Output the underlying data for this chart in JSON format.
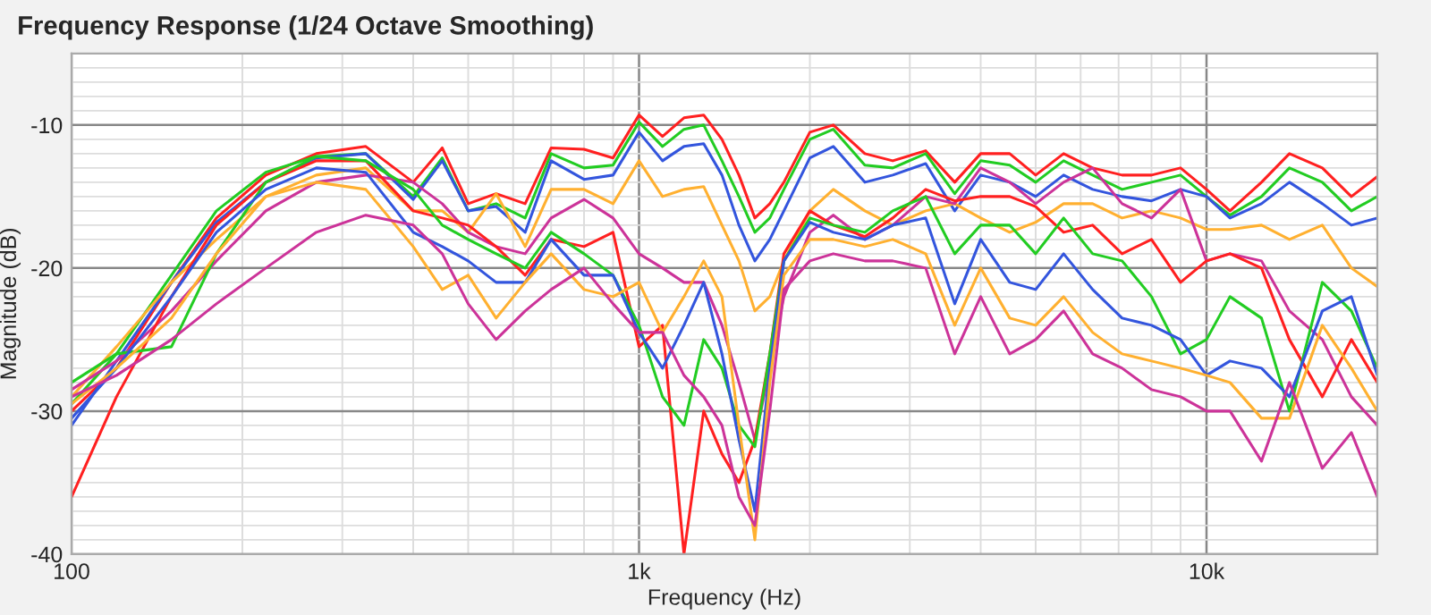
{
  "chart_data": {
    "type": "line",
    "title": "Frequency Response (1/24 Octave Smoothing)",
    "xlabel": "Frequency (Hz)",
    "ylabel": "Magnitude (dB)",
    "log": "x",
    "grid": true,
    "legend": false,
    "xlim": [
      100,
      20000
    ],
    "ylim": [
      -40,
      -5
    ],
    "xticks": [
      {
        "value": 100,
        "label": "100"
      },
      {
        "value": 200,
        "label": null
      },
      {
        "value": 300,
        "label": null
      },
      {
        "value": 400,
        "label": null
      },
      {
        "value": 500,
        "label": null
      },
      {
        "value": 600,
        "label": null
      },
      {
        "value": 700,
        "label": null
      },
      {
        "value": 800,
        "label": null
      },
      {
        "value": 900,
        "label": null
      },
      {
        "value": 1000,
        "label": "1k"
      },
      {
        "value": 2000,
        "label": null
      },
      {
        "value": 3000,
        "label": null
      },
      {
        "value": 4000,
        "label": null
      },
      {
        "value": 5000,
        "label": null
      },
      {
        "value": 6000,
        "label": null
      },
      {
        "value": 7000,
        "label": null
      },
      {
        "value": 8000,
        "label": null
      },
      {
        "value": 9000,
        "label": null
      },
      {
        "value": 10000,
        "label": "10k"
      },
      {
        "value": 20000,
        "label": null
      }
    ],
    "yticks": [
      -40,
      {
        "value": -39,
        "label": null
      },
      {
        "value": -38,
        "label": null
      },
      {
        "value": -37,
        "label": null
      },
      {
        "value": -36,
        "label": null
      },
      {
        "value": -35,
        "label": null
      },
      {
        "value": -34,
        "label": null
      },
      {
        "value": -33,
        "label": null
      },
      {
        "value": -32,
        "label": null
      },
      {
        "value": -31,
        "label": null
      },
      -30,
      {
        "value": -29,
        "label": null
      },
      {
        "value": -28,
        "label": null
      },
      {
        "value": -27,
        "label": null
      },
      {
        "value": -26,
        "label": null
      },
      {
        "value": -25,
        "label": null
      },
      {
        "value": -24,
        "label": null
      },
      {
        "value": -23,
        "label": null
      },
      {
        "value": -22,
        "label": null
      },
      {
        "value": -21,
        "label": null
      },
      -20,
      {
        "value": -19,
        "label": null
      },
      {
        "value": -18,
        "label": null
      },
      {
        "value": -17,
        "label": null
      },
      {
        "value": -16,
        "label": null
      },
      {
        "value": -15,
        "label": null
      },
      {
        "value": -14,
        "label": null
      },
      {
        "value": -13,
        "label": null
      },
      {
        "value": -12,
        "label": null
      },
      {
        "value": -11,
        "label": null
      },
      -10,
      {
        "value": -9,
        "label": null
      },
      {
        "value": -8,
        "label": null
      },
      {
        "value": -7,
        "label": null
      },
      {
        "value": -6,
        "label": null
      },
      {
        "value": -5,
        "label": null
      }
    ],
    "x": [
      100,
      120,
      150,
      180,
      220,
      270,
      330,
      400,
      450,
      500,
      560,
      630,
      700,
      800,
      900,
      1000,
      1100,
      1200,
      1300,
      1400,
      1500,
      1600,
      1700,
      1800,
      2000,
      2200,
      2500,
      2800,
      3200,
      3600,
      4000,
      4500,
      5000,
      5600,
      6300,
      7100,
      8000,
      9000,
      10000,
      11000,
      12500,
      14000,
      16000,
      18000,
      20000
    ],
    "series": [
      {
        "color": "#ff2020",
        "values": [
          -30,
          -27,
          -21,
          -16.5,
          -13.5,
          -12,
          -11.5,
          -14,
          -11.6,
          -15.5,
          -14.8,
          -15.5,
          -11.6,
          -11.7,
          -12.3,
          -9.3,
          -10.8,
          -9.5,
          -9.3,
          -11,
          -13.5,
          -16.5,
          -15.5,
          -14,
          -10.5,
          -10,
          -12,
          -12.5,
          -11.8,
          -14,
          -12,
          -12,
          -13.5,
          -12,
          -13,
          -13.5,
          -13.5,
          -13,
          -14.5,
          -16,
          -14,
          -12,
          -13,
          -15,
          -13.6
        ]
      },
      {
        "color": "#22cc22",
        "values": [
          -29.5,
          -26,
          -20.5,
          -16,
          -13.3,
          -12.2,
          -12,
          -15,
          -12.3,
          -16,
          -15.5,
          -16.5,
          -12,
          -13,
          -12.8,
          -9.8,
          -11.5,
          -10.3,
          -10,
          -12.5,
          -15,
          -17.5,
          -16.5,
          -14.5,
          -11,
          -10.3,
          -12.8,
          -13,
          -12,
          -14.8,
          -12.5,
          -12.8,
          -14,
          -12.5,
          -13.5,
          -14.5,
          -14,
          -13.5,
          -15,
          -16.3,
          -15,
          -13,
          -14,
          -16,
          -15
        ]
      },
      {
        "color": "#3355dd",
        "values": [
          -31,
          -26.5,
          -21,
          -16.8,
          -14,
          -12.3,
          -12,
          -15.2,
          -12.5,
          -16,
          -15.7,
          -17.5,
          -12.5,
          -13.8,
          -13.5,
          -10.5,
          -12.5,
          -11.5,
          -11.3,
          -13.5,
          -17,
          -19.5,
          -18,
          -16,
          -12.3,
          -11.5,
          -14,
          -13.5,
          -12.7,
          -16,
          -13.5,
          -14,
          -15,
          -13.5,
          -14.5,
          -15,
          -15.3,
          -14.5,
          -15,
          -16.5,
          -15.5,
          -14,
          -15.5,
          -17,
          -16.5
        ]
      },
      {
        "color": "#ffb030",
        "values": [
          -29,
          -25.5,
          -21,
          -18,
          -15,
          -13.5,
          -13,
          -16,
          -16,
          -17.5,
          -14.8,
          -18.5,
          -14.5,
          -14.5,
          -15.5,
          -12.5,
          -15,
          -14.5,
          -14.3,
          -17,
          -19.5,
          -23,
          -22,
          -19.5,
          -16,
          -14.5,
          -16,
          -17,
          -16,
          -15.5,
          -16.5,
          -17.5,
          -16.8,
          -15.5,
          -15.5,
          -16.5,
          -16,
          -16.5,
          -17.3,
          -17.3,
          -17,
          -18,
          -17,
          -20,
          -21.3
        ]
      },
      {
        "color": "#cc3399",
        "values": [
          -28.5,
          -26.5,
          -23,
          -19.5,
          -16,
          -14,
          -13.5,
          -14,
          -15.5,
          -17.5,
          -18.5,
          -19,
          -16.5,
          -15.2,
          -16.5,
          -19,
          -20,
          -21,
          -21,
          -24,
          -28,
          -32,
          -27,
          -22,
          -17.5,
          -16.3,
          -18,
          -17,
          -15,
          -15.5,
          -13,
          -14,
          -15.5,
          -14,
          -13,
          -15.5,
          -16.5,
          -14.5,
          -19.5,
          -19,
          -19.5,
          -23,
          -25,
          -29,
          -31
        ]
      },
      {
        "color": "#ff2020",
        "values": [
          -36,
          -29,
          -22,
          -17,
          -14,
          -12.5,
          -12.5,
          -16,
          -16.5,
          -17,
          -18.5,
          -20.5,
          -18,
          -18.5,
          -17.5,
          -25.5,
          -24,
          -40,
          -30,
          -33,
          -35,
          -32,
          -26,
          -19,
          -16,
          -17,
          -17.8,
          -16.5,
          -14.5,
          -15.3,
          -15,
          -15,
          -15.7,
          -17.5,
          -17,
          -19,
          -18,
          -21,
          -19.5,
          -19,
          -20,
          -25,
          -29,
          -25,
          -28
        ]
      },
      {
        "color": "#22cc22",
        "values": [
          -28,
          -26,
          -25.5,
          -19,
          -14,
          -12.2,
          -12.5,
          -14.5,
          -17,
          -18,
          -19,
          -20,
          -17.5,
          -19,
          -20.5,
          -24,
          -29,
          -31,
          -25,
          -27,
          -31,
          -32.5,
          -26,
          -19.5,
          -16.5,
          -17,
          -17.5,
          -16,
          -15,
          -19,
          -17,
          -17,
          -19,
          -16.5,
          -19,
          -19.5,
          -22,
          -26,
          -25,
          -22,
          -23.5,
          -30,
          -21,
          -23,
          -27
        ]
      },
      {
        "color": "#3355dd",
        "values": [
          -30.5,
          -27,
          -22,
          -17.5,
          -14.5,
          -13,
          -13.3,
          -17.5,
          -18.5,
          -19.5,
          -21,
          -21,
          -18,
          -20.5,
          -20.5,
          -24.5,
          -27,
          -24,
          -21,
          -26,
          -32,
          -37,
          -27,
          -19.5,
          -16.8,
          -17.5,
          -18,
          -17,
          -16.5,
          -22.5,
          -18,
          -21,
          -21.5,
          -19,
          -21.5,
          -23.5,
          -24,
          -25,
          -27.5,
          -26.5,
          -27,
          -29,
          -23,
          -22,
          -27.5
        ]
      },
      {
        "color": "#ffb030",
        "values": [
          -29.5,
          -27,
          -23.5,
          -19,
          -15,
          -14,
          -14.5,
          -18.5,
          -21.5,
          -20.5,
          -23.5,
          -21,
          -19,
          -21.5,
          -22,
          -21,
          -24.5,
          -22,
          -19.5,
          -22,
          -31,
          -39,
          -28,
          -20.5,
          -18,
          -18,
          -18.5,
          -18,
          -19,
          -24,
          -20,
          -23.5,
          -24,
          -22,
          -24.5,
          -26,
          -26.5,
          -27,
          -27.5,
          -28,
          -30.5,
          -30.5,
          -24,
          -27,
          -30
        ]
      },
      {
        "color": "#cc3399",
        "values": [
          -29,
          -27.5,
          -25,
          -22.5,
          -20,
          -17.5,
          -16.3,
          -17,
          -19,
          -22.5,
          -25,
          -23,
          -21.5,
          -20,
          -22.5,
          -24.5,
          -24.5,
          -27.5,
          -29,
          -31,
          -36,
          -38,
          -30,
          -21.5,
          -19.5,
          -19,
          -19.5,
          -19.5,
          -20,
          -26,
          -22,
          -26,
          -25,
          -23,
          -26,
          -27,
          -28.5,
          -29,
          -30,
          -30,
          -33.5,
          -28,
          -34,
          -31.5,
          -36
        ]
      }
    ]
  }
}
